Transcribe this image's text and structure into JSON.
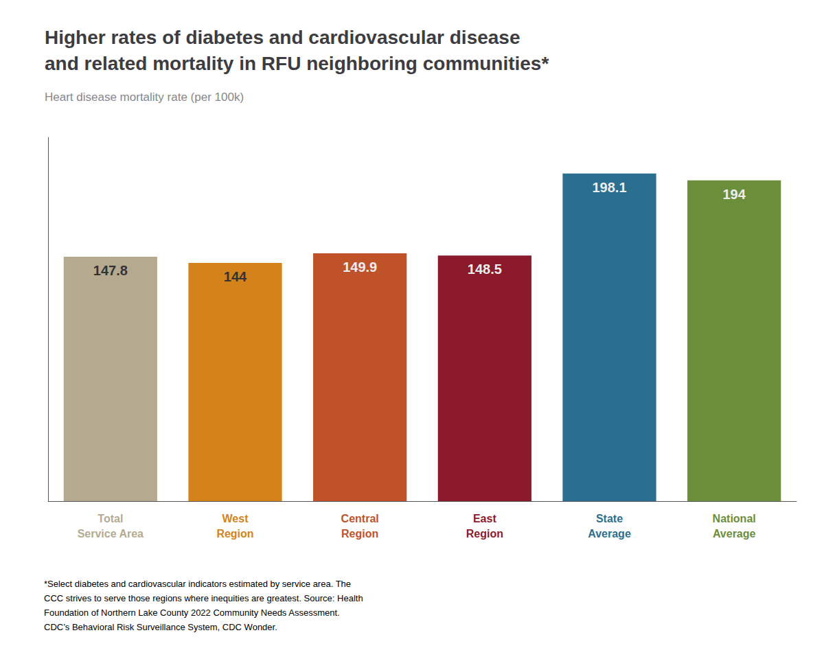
{
  "chart_data": {
    "type": "bar",
    "title": "Higher rates of diabetes and cardiovascular disease\nand related mortality in RFU neighboring communities*",
    "subtitle": "Heart disease mortality rate (per 100k)",
    "annotations": [
      "*Select diabetes and cardiovascular indicators estimated by service area. The\nCCC strives to serve those regions where inequities are greatest. Source: Health\nFoundation of Northern Lake County 2022 Community Needs Assessment.\nCDC’s Behavioral Risk Surveillance System, CDC Wonder."
    ],
    "categories": [
      "Total\nService Area",
      "West\nRegion",
      "Central\nRegion",
      "East\nRegion",
      "State\nAverage",
      "National\nAverage"
    ],
    "values": [
      147.8,
      144,
      149.9,
      148.5,
      198.1,
      194
    ],
    "colors": [
      "#b5aa90",
      "#d4831a",
      "#c0522a",
      "#8b1a2a",
      "#2a6f8f",
      "#6b8e3a"
    ],
    "ylim": [
      0,
      220
    ],
    "grid": false,
    "data_labels": true,
    "tick_labels": "x"
  }
}
